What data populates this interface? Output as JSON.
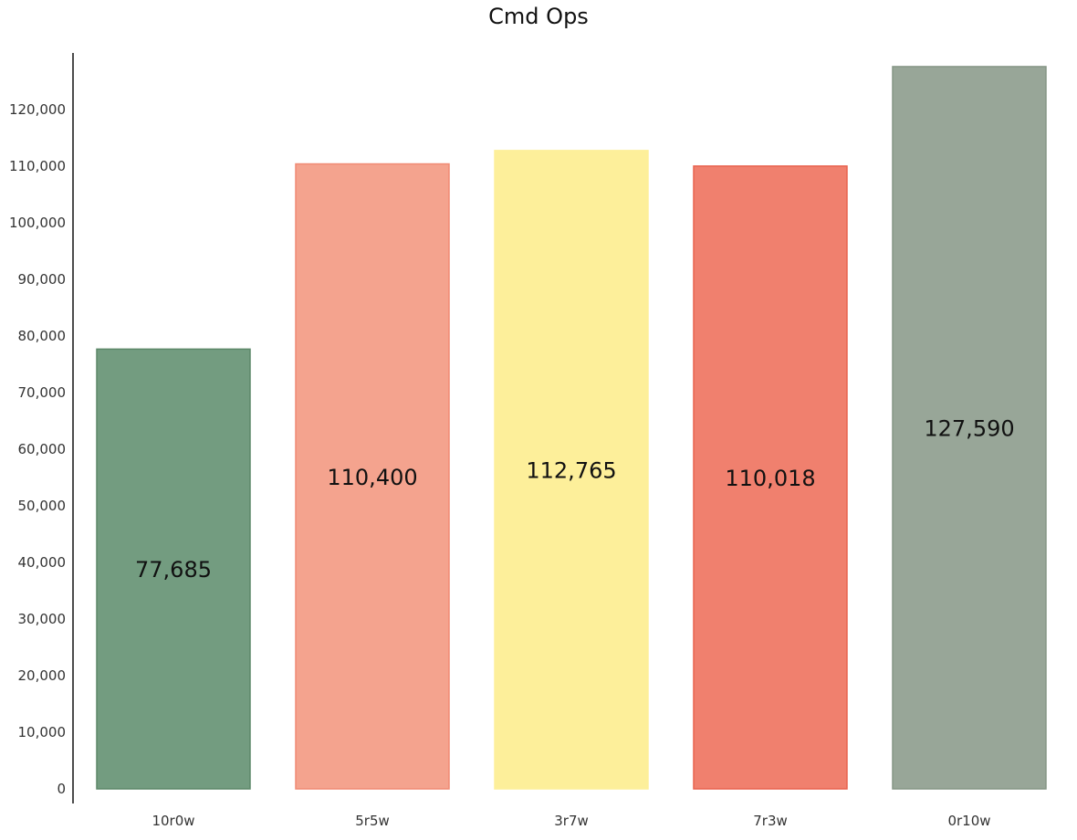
{
  "chart_data": {
    "type": "bar",
    "title": "Cmd Ops",
    "xlabel": "",
    "ylabel": "",
    "categories": [
      "10r0w",
      "5r5w",
      "3r7w",
      "7r3w",
      "0r10w"
    ],
    "values": [
      77685,
      110400,
      112765,
      110018,
      127590
    ],
    "value_labels": [
      "77,685",
      "110,400",
      "112,765",
      "110,018",
      "127,590"
    ],
    "ylim": [
      0,
      130000
    ],
    "yticks": [
      0,
      10000,
      20000,
      30000,
      40000,
      50000,
      60000,
      70000,
      80000,
      90000,
      100000,
      110000,
      120000
    ],
    "ytick_labels": [
      "0",
      "10,000",
      "20,000",
      "30,000",
      "40,000",
      "50,000",
      "60,000",
      "70,000",
      "80,000",
      "90,000",
      "100,000",
      "110,000",
      "120,000"
    ],
    "colors": [
      "#739c80",
      "#f4a38e",
      "#fdef9a",
      "#f0806e",
      "#98a698"
    ],
    "edge_colors": [
      "#5c8768",
      "#f08a74",
      "#fdef9a",
      "#e8624f",
      "#869686"
    ],
    "grid": false,
    "legend": "none"
  }
}
